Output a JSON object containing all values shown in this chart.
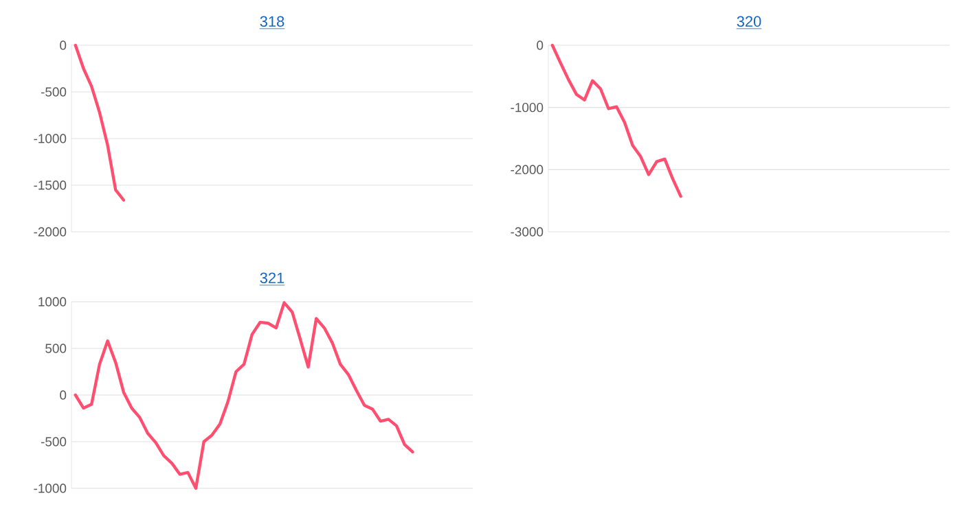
{
  "chart_data": [
    {
      "type": "line",
      "title": "318",
      "categories": [
        null,
        null,
        null,
        null,
        null,
        null,
        null,
        null,
        null,
        null,
        null,
        null,
        null,
        null,
        null,
        null,
        null,
        null,
        null,
        null,
        null,
        null,
        null,
        null,
        null,
        null,
        null,
        null,
        null,
        null,
        null,
        null,
        null,
        null,
        null,
        null,
        null,
        null,
        null,
        null,
        null,
        null,
        null,
        null,
        null,
        null,
        null,
        null,
        null,
        null
      ],
      "ylim": [
        -2000,
        0
      ],
      "yticks": [
        -2000,
        -1500,
        -1000,
        -500,
        0
      ],
      "grid": "y",
      "tick_labels": "y",
      "series": [
        {
          "color": "#ff4f70",
          "values": [
            0,
            -250,
            -440,
            -720,
            -1070,
            -1550,
            -1660,
            null,
            null,
            null,
            null,
            null,
            null,
            null,
            null,
            null,
            null,
            null,
            null,
            null,
            null,
            null,
            null,
            null,
            null,
            null,
            null,
            null,
            null,
            null,
            null,
            null,
            null,
            null,
            null,
            null,
            null,
            null,
            null,
            null,
            null,
            null,
            null,
            null,
            null,
            null,
            null,
            null,
            null,
            null
          ]
        }
      ]
    },
    {
      "type": "line",
      "title": "320",
      "categories": [
        null,
        null,
        null,
        null,
        null,
        null,
        null,
        null,
        null,
        null,
        null,
        null,
        null,
        null,
        null,
        null,
        null,
        null,
        null,
        null,
        null,
        null,
        null,
        null,
        null,
        null,
        null,
        null,
        null,
        null,
        null,
        null,
        null,
        null,
        null,
        null,
        null,
        null,
        null,
        null,
        null,
        null,
        null,
        null,
        null,
        null,
        null,
        null,
        null,
        null
      ],
      "ylim": [
        -3000,
        0
      ],
      "yticks": [
        -3000,
        -2000,
        -1000,
        0
      ],
      "grid": "y",
      "tick_labels": "y",
      "series": [
        {
          "color": "#ff4f70",
          "values": [
            0,
            -280,
            -550,
            -790,
            -880,
            -570,
            -700,
            -1020,
            -990,
            -1240,
            -1610,
            -1790,
            -2080,
            -1870,
            -1830,
            -2150,
            -2430,
            null,
            null,
            null,
            null,
            null,
            null,
            null,
            null,
            null,
            null,
            null,
            null,
            null,
            null,
            null,
            null,
            null,
            null,
            null,
            null,
            null,
            null,
            null,
            null,
            null,
            null,
            null,
            null,
            null,
            null,
            null,
            null,
            null
          ]
        }
      ]
    },
    {
      "type": "line",
      "title": "321",
      "categories": [
        null,
        null,
        null,
        null,
        null,
        null,
        null,
        null,
        null,
        null,
        null,
        null,
        null,
        null,
        null,
        null,
        null,
        null,
        null,
        null,
        null,
        null,
        null,
        null,
        null,
        null,
        null,
        null,
        null,
        null,
        null,
        null,
        null,
        null,
        null,
        null,
        null,
        null,
        null,
        null,
        null,
        null,
        null,
        null,
        null,
        null,
        null,
        null,
        null,
        null
      ],
      "ylim": [
        -1000,
        1000
      ],
      "yticks": [
        -1000,
        -500,
        0,
        500,
        1000
      ],
      "grid": "y",
      "tick_labels": "y",
      "series": [
        {
          "color": "#ff4f70",
          "values": [
            0,
            -140,
            -100,
            330,
            580,
            350,
            30,
            -140,
            -240,
            -410,
            -510,
            -650,
            -730,
            -850,
            -830,
            -1000,
            -500,
            -430,
            -310,
            -70,
            250,
            330,
            650,
            780,
            770,
            720,
            990,
            890,
            600,
            300,
            820,
            720,
            560,
            330,
            220,
            50,
            -110,
            -150,
            -280,
            -260,
            -330,
            -530,
            -610,
            null,
            null,
            null,
            null,
            null,
            null,
            null
          ]
        }
      ]
    }
  ]
}
